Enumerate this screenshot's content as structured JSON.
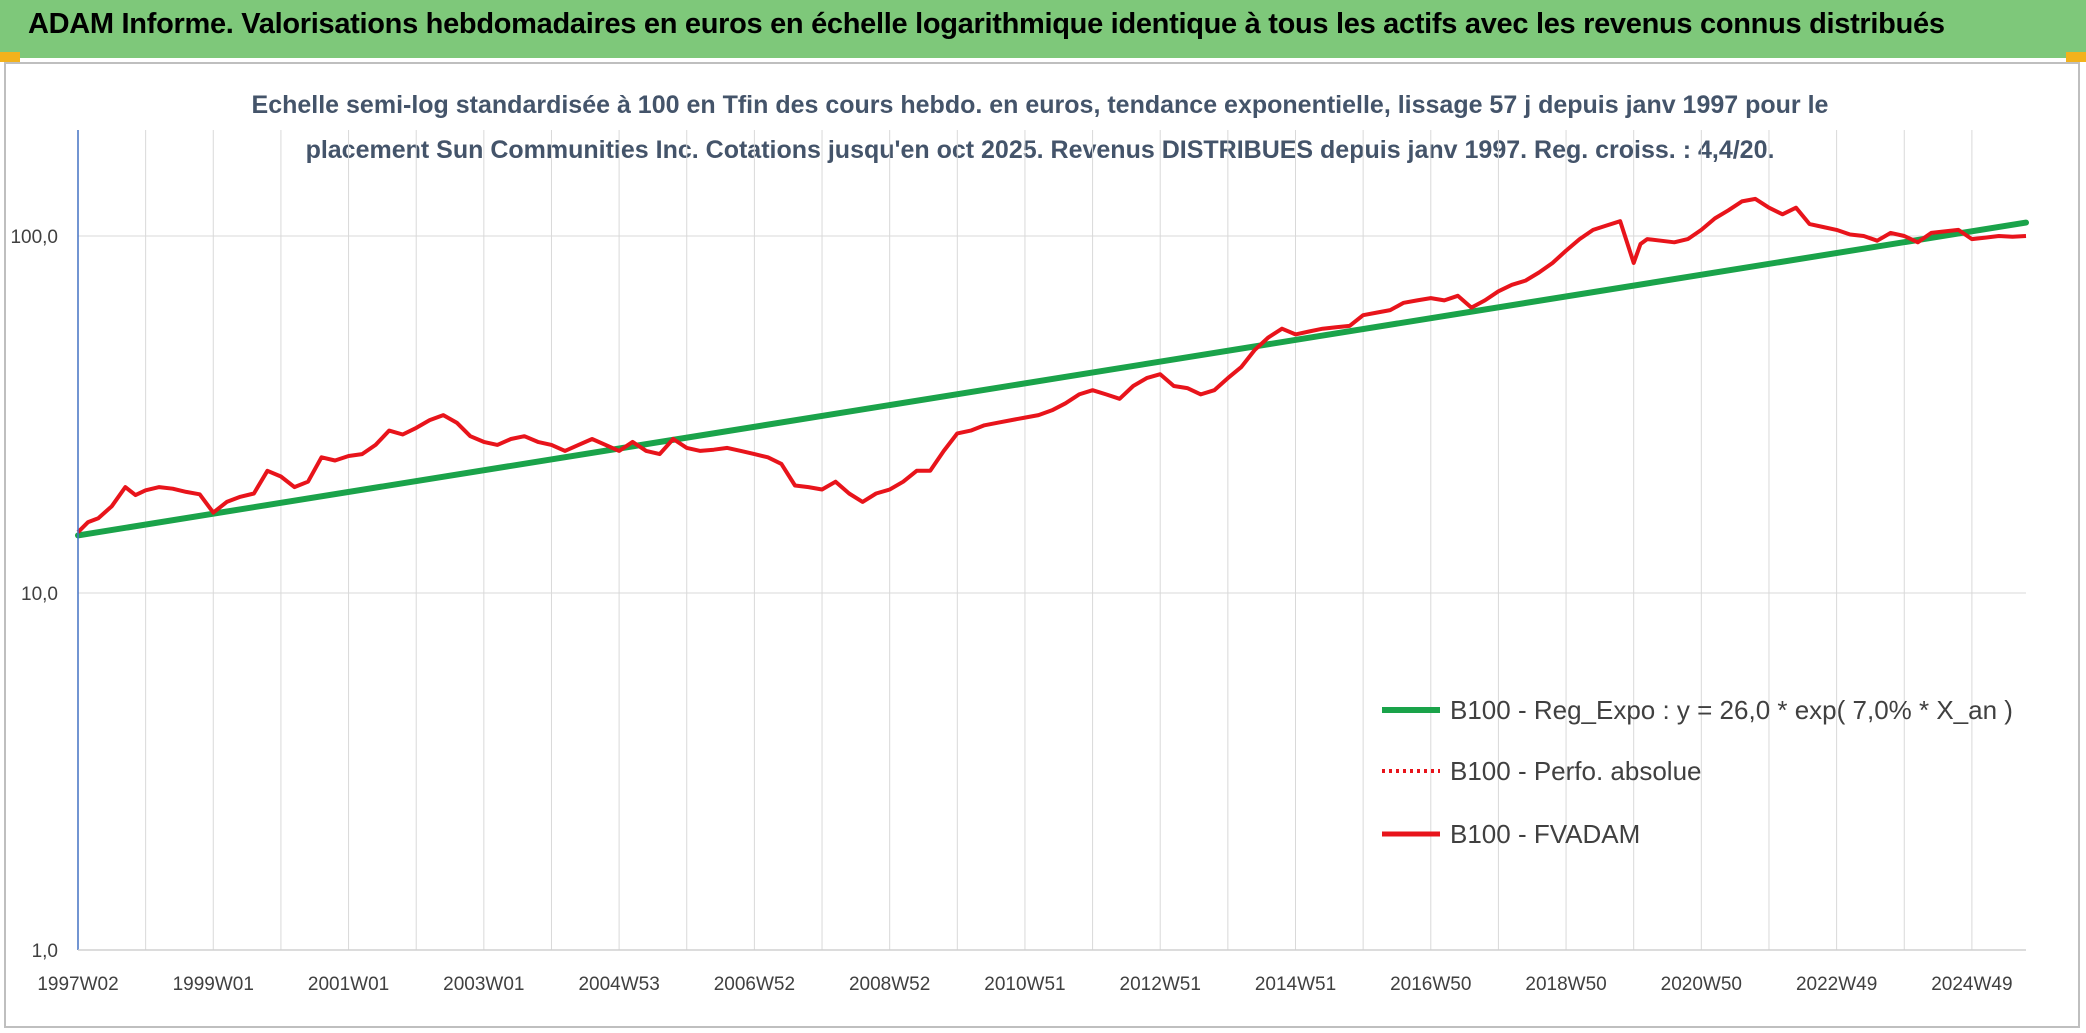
{
  "header": {
    "title": "ADAM Informe. Valorisations hebdomadaires en euros en échelle logarithmique identique à tous les actifs avec les revenus connus distribués"
  },
  "colors": {
    "header_bg": "#7ec87a",
    "trend": "#1aa34a",
    "fvadam": "#e8141b",
    "perfo": "#e8141b",
    "grid": "#d9d9d9",
    "axis": "#4472c4"
  },
  "chart_data": {
    "type": "line",
    "title_line1": "Echelle semi-log standardisée à 100 en Tfin des cours hebdo. en euros, tendance exponentielle, lissage 57 j depuis janv 1997 pour le",
    "title_line2": "placement Sun Communities Inc. Cotations jusqu'en oct 2025. Revenus DISTRIBUES depuis janv 1997. Reg. croiss. : 4,4/20.",
    "y_scale": "log",
    "ylim": [
      1,
      200
    ],
    "xlim": [
      1997.0,
      2025.8
    ],
    "y_ticks": [
      {
        "value": 1,
        "label": "1,0"
      },
      {
        "value": 10,
        "label": "10,0"
      },
      {
        "value": 100,
        "label": "100,0"
      }
    ],
    "x_ticks": [
      {
        "value": 1997.0,
        "label": "1997W02"
      },
      {
        "value": 1999.0,
        "label": "1999W01"
      },
      {
        "value": 2001.0,
        "label": "2001W01"
      },
      {
        "value": 2003.0,
        "label": "2003W01"
      },
      {
        "value": 2005.0,
        "label": "2004W53"
      },
      {
        "value": 2007.0,
        "label": "2006W52"
      },
      {
        "value": 2009.0,
        "label": "2008W52"
      },
      {
        "value": 2011.0,
        "label": "2010W51"
      },
      {
        "value": 2013.0,
        "label": "2012W51"
      },
      {
        "value": 2015.0,
        "label": "2014W51"
      },
      {
        "value": 2017.0,
        "label": "2016W50"
      },
      {
        "value": 2019.0,
        "label": "2018W50"
      },
      {
        "value": 2021.0,
        "label": "2020W50"
      },
      {
        "value": 2023.0,
        "label": "2022W49"
      },
      {
        "value": 2025.0,
        "label": "2024W49"
      }
    ],
    "legend_position": "bottom-right",
    "series": [
      {
        "name": "B100 - Reg_Expo : y = 26,0 * exp( 7,0% *  X_an )",
        "style": "solid-thick",
        "color": "#1aa34a",
        "x": [
          1997.0,
          2025.8
        ],
        "values": [
          14.5,
          109
        ]
      },
      {
        "name": "B100 - Perfo. absolue",
        "style": "dotted",
        "color": "#e8141b",
        "x": [],
        "values": []
      },
      {
        "name": "B100 - FVADAM",
        "style": "solid",
        "color": "#e8141b",
        "x": [
          1997.0,
          1997.15,
          1997.3,
          1997.5,
          1997.7,
          1997.85,
          1998.0,
          1998.2,
          1998.4,
          1998.6,
          1998.8,
          1999.0,
          1999.2,
          1999.4,
          1999.6,
          1999.8,
          2000.0,
          2000.2,
          2000.4,
          2000.6,
          2000.8,
          2001.0,
          2001.2,
          2001.4,
          2001.6,
          2001.8,
          2002.0,
          2002.2,
          2002.4,
          2002.6,
          2002.8,
          2003.0,
          2003.2,
          2003.4,
          2003.6,
          2003.8,
          2004.0,
          2004.2,
          2004.4,
          2004.6,
          2004.8,
          2005.0,
          2005.2,
          2005.4,
          2005.6,
          2005.8,
          2006.0,
          2006.2,
          2006.4,
          2006.6,
          2006.8,
          2007.0,
          2007.2,
          2007.4,
          2007.6,
          2007.8,
          2008.0,
          2008.2,
          2008.4,
          2008.6,
          2008.8,
          2009.0,
          2009.2,
          2009.4,
          2009.6,
          2009.8,
          2010.0,
          2010.2,
          2010.4,
          2010.6,
          2010.8,
          2011.0,
          2011.2,
          2011.4,
          2011.6,
          2011.8,
          2012.0,
          2012.2,
          2012.4,
          2012.6,
          2012.8,
          2013.0,
          2013.2,
          2013.4,
          2013.6,
          2013.8,
          2014.0,
          2014.2,
          2014.4,
          2014.6,
          2014.8,
          2015.0,
          2015.2,
          2015.4,
          2015.6,
          2015.8,
          2016.0,
          2016.2,
          2016.4,
          2016.6,
          2016.8,
          2017.0,
          2017.2,
          2017.4,
          2017.6,
          2017.8,
          2018.0,
          2018.2,
          2018.4,
          2018.6,
          2018.8,
          2019.0,
          2019.2,
          2019.4,
          2019.6,
          2019.8,
          2020.0,
          2020.1,
          2020.2,
          2020.4,
          2020.6,
          2020.8,
          2021.0,
          2021.2,
          2021.4,
          2021.6,
          2021.8,
          2022.0,
          2022.2,
          2022.4,
          2022.6,
          2022.8,
          2023.0,
          2023.2,
          2023.4,
          2023.6,
          2023.8,
          2024.0,
          2024.2,
          2024.4,
          2024.6,
          2024.8,
          2025.0,
          2025.2,
          2025.4,
          2025.6,
          2025.8
        ],
        "values": [
          14.8,
          15.8,
          16.2,
          17.5,
          19.8,
          18.8,
          19.4,
          19.8,
          19.6,
          19.2,
          18.9,
          16.8,
          18.0,
          18.6,
          19.0,
          22.0,
          21.2,
          19.8,
          20.5,
          24.0,
          23.5,
          24.2,
          24.5,
          26.0,
          28.5,
          27.8,
          29.0,
          30.5,
          31.5,
          30.0,
          27.5,
          26.5,
          26.0,
          27.0,
          27.5,
          26.5,
          26.0,
          25.0,
          26.0,
          27.0,
          26.0,
          25.0,
          26.5,
          25.0,
          24.5,
          27.0,
          25.5,
          25.0,
          25.2,
          25.5,
          25.0,
          24.5,
          24.0,
          23.0,
          20.0,
          19.8,
          19.5,
          20.5,
          19.0,
          18.0,
          19.0,
          19.5,
          20.5,
          22.0,
          22.0,
          25.0,
          28.0,
          28.5,
          29.5,
          30.0,
          30.5,
          31.0,
          31.5,
          32.5,
          34.0,
          36.0,
          37.0,
          36.0,
          35.0,
          38.0,
          40.0,
          41.0,
          38.0,
          37.5,
          36.0,
          37.0,
          40.0,
          43.0,
          48.0,
          52.0,
          55.0,
          53.0,
          54.0,
          55.0,
          55.5,
          56.0,
          60.0,
          61.0,
          62.0,
          65.0,
          66.0,
          67.0,
          66.0,
          68.0,
          63.0,
          66.0,
          70.0,
          73.0,
          75.0,
          79.0,
          84.0,
          91.0,
          98.0,
          104.0,
          107.0,
          110.0,
          84.0,
          95.0,
          98.0,
          97.0,
          96.0,
          98.0,
          104.0,
          112.0,
          118.0,
          125.0,
          127.0,
          120.0,
          115.0,
          120.0,
          108.0,
          106.0,
          104.0,
          101.0,
          100.0,
          97.0,
          102.0,
          100.0,
          96.0,
          102.0,
          103.0,
          104.0,
          98.0,
          99.0,
          100.0,
          99.5,
          100.0
        ]
      }
    ]
  }
}
